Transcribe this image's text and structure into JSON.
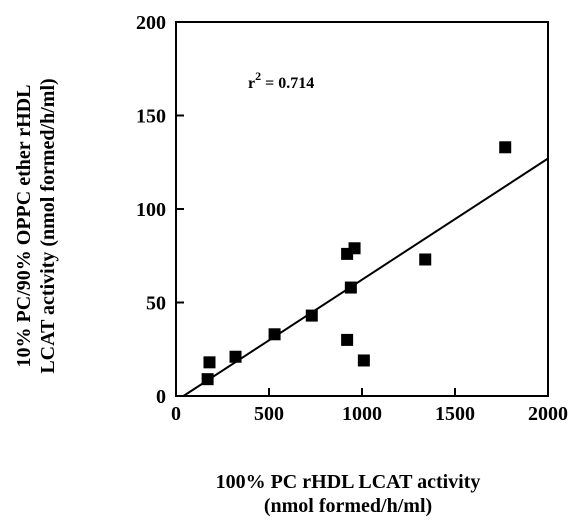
{
  "chart_data": {
    "type": "scatter",
    "title": "",
    "xlabel_line1": "100% PC rHDL LCAT activity",
    "xlabel_line2": "(nmol formed/h/ml)",
    "ylabel_line1": "10% PC/90% OPPC ether rHDL",
    "ylabel_line2": "LCAT activity (nmol formed/h/ml)",
    "xlim": [
      0,
      2000
    ],
    "ylim": [
      0,
      200
    ],
    "x_ticks": [
      0,
      500,
      1000,
      1500,
      2000
    ],
    "y_ticks": [
      0,
      50,
      100,
      150,
      200
    ],
    "x_tick_labels": [
      "0",
      "500",
      "1000",
      "1500",
      "2000"
    ],
    "y_tick_labels": [
      "0",
      "50",
      "100",
      "150",
      "200"
    ],
    "grid": false,
    "legend": "none",
    "marker": "square",
    "marker_color": "#000000",
    "points": [
      {
        "x": 170,
        "y": 9
      },
      {
        "x": 180,
        "y": 18
      },
      {
        "x": 320,
        "y": 21
      },
      {
        "x": 530,
        "y": 33
      },
      {
        "x": 730,
        "y": 43
      },
      {
        "x": 920,
        "y": 30
      },
      {
        "x": 920,
        "y": 76
      },
      {
        "x": 940,
        "y": 58
      },
      {
        "x": 960,
        "y": 79
      },
      {
        "x": 1010,
        "y": 19
      },
      {
        "x": 1340,
        "y": 73
      },
      {
        "x": 1770,
        "y": 133
      }
    ],
    "fit_line": {
      "x": [
        40,
        2000
      ],
      "y": [
        0,
        127
      ]
    },
    "annotation": {
      "base": "r",
      "sup": "2",
      "text": " = 0.714"
    }
  }
}
